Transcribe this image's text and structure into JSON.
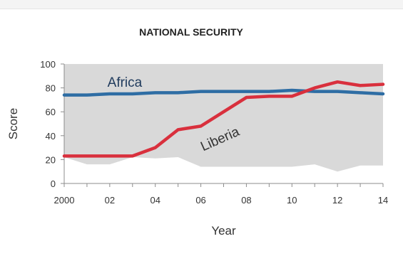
{
  "page_header": {
    "clipped_text": ""
  },
  "chart_data": {
    "type": "line",
    "title": "NATIONAL SECURITY",
    "xlabel": "Year",
    "ylabel": "Score",
    "ylim": [
      0,
      100
    ],
    "xlim": [
      2000,
      2014
    ],
    "yticks": [
      0,
      20,
      40,
      60,
      80,
      100
    ],
    "xticks": [
      {
        "value": 2000,
        "label": "2000"
      },
      {
        "value": 2002,
        "label": "02"
      },
      {
        "value": 2004,
        "label": "04"
      },
      {
        "value": 2006,
        "label": "06"
      },
      {
        "value": 2008,
        "label": "08"
      },
      {
        "value": 2010,
        "label": "10"
      },
      {
        "value": 2012,
        "label": "12"
      },
      {
        "value": 2014,
        "label": "14"
      }
    ],
    "range_band": {
      "color": "#d9d9d9",
      "upper": [
        100,
        100,
        100,
        100,
        100,
        100,
        100,
        100,
        100,
        100,
        100,
        100,
        100,
        100,
        100
      ],
      "lower": [
        22,
        16,
        16,
        22,
        21,
        22,
        14,
        14,
        14,
        14,
        14,
        16,
        10,
        15,
        15
      ]
    },
    "series": [
      {
        "name": "Africa",
        "color": "#2e6da4",
        "x": [
          2000,
          2001,
          2002,
          2003,
          2004,
          2005,
          2006,
          2007,
          2008,
          2009,
          2010,
          2011,
          2012,
          2013,
          2014
        ],
        "values": [
          74,
          74,
          75,
          75,
          76,
          76,
          77,
          77,
          77,
          77,
          78,
          77,
          77,
          76,
          75
        ]
      },
      {
        "name": "Liberia",
        "color": "#d9303d",
        "x": [
          2000,
          2001,
          2002,
          2003,
          2004,
          2005,
          2006,
          2007,
          2008,
          2009,
          2010,
          2011,
          2012,
          2013,
          2014
        ],
        "values": [
          23,
          23,
          23,
          23,
          30,
          45,
          48,
          60,
          72,
          73,
          73,
          80,
          85,
          82,
          83
        ]
      }
    ],
    "grid": false,
    "legend": "none"
  }
}
